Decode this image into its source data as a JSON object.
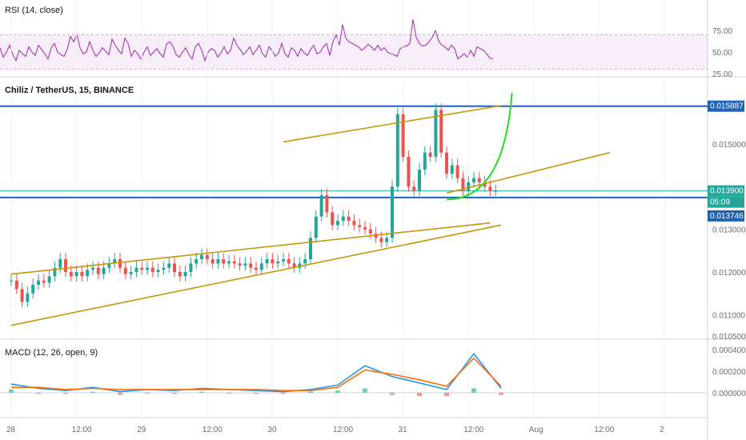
{
  "chart_data": [
    {
      "type": "line",
      "title": "RSI (14, close)",
      "ylim": [
        25,
        90
      ],
      "band": [
        30,
        70
      ],
      "y_ticks": [
        "75.00",
        "50.00",
        "25.00"
      ],
      "y_tick_values": [
        75,
        50,
        25
      ],
      "series": [
        {
          "color": "#9c27b0",
          "x": [
            0,
            4,
            8,
            12,
            16,
            20,
            24,
            28,
            32,
            36,
            40,
            44,
            48,
            52,
            56,
            60,
            64,
            68,
            72,
            76,
            80,
            84,
            88,
            92,
            96,
            100,
            104,
            108,
            112,
            116,
            120,
            124,
            128,
            132,
            136,
            140,
            144,
            148,
            152,
            156,
            160,
            164,
            168,
            172,
            176,
            180,
            184,
            188,
            192,
            196,
            200,
            204,
            208,
            212,
            216,
            220,
            224,
            228,
            232,
            236,
            240,
            244,
            248,
            252,
            256,
            260,
            264,
            268,
            272,
            276,
            280,
            284,
            288,
            292,
            296,
            300,
            304,
            308,
            312,
            316,
            320,
            324,
            328,
            332,
            336,
            340,
            344,
            348,
            352,
            356,
            360,
            364,
            368,
            372,
            376,
            380,
            384,
            388,
            392,
            396,
            400,
            404,
            408,
            412,
            416,
            420,
            424,
            428,
            432,
            436,
            440,
            444,
            448,
            452,
            456,
            460,
            464,
            468,
            472,
            476,
            480,
            484,
            488,
            492,
            496,
            500,
            504,
            508,
            512,
            516,
            520,
            524,
            528,
            532,
            536,
            540,
            544,
            548,
            552,
            556,
            560,
            564,
            568,
            572,
            576,
            580,
            584,
            588,
            592,
            596,
            600,
            604,
            608,
            612,
            616
          ],
          "y": [
            55,
            44,
            50,
            58,
            47,
            40,
            52,
            48,
            45,
            56,
            50,
            46,
            58,
            53,
            48,
            42,
            55,
            60,
            50,
            47,
            45,
            53,
            68,
            62,
            70,
            55,
            48,
            50,
            62,
            52,
            45,
            49,
            55,
            51,
            47,
            65,
            58,
            52,
            48,
            66,
            60,
            45,
            52,
            48,
            42,
            50,
            56,
            46,
            50,
            54,
            48,
            44,
            59,
            62,
            57,
            47,
            44,
            50,
            55,
            47,
            42,
            56,
            60,
            52,
            40,
            50,
            54,
            52,
            44,
            49,
            56,
            48,
            52,
            66,
            58,
            53,
            47,
            51,
            56,
            47,
            52,
            58,
            48,
            44,
            56,
            52,
            45,
            49,
            60,
            48,
            44,
            55,
            52,
            45,
            54,
            49,
            46,
            53,
            58,
            48,
            50,
            56,
            60,
            46,
            62,
            70,
            58,
            82,
            66,
            62,
            60,
            58,
            56,
            52,
            55,
            59,
            56,
            52,
            58,
            52,
            55,
            50,
            48,
            47,
            45,
            54,
            56,
            57,
            60,
            88,
            67,
            60,
            57,
            58,
            62,
            67,
            75,
            63,
            58,
            56,
            52,
            58,
            54,
            42,
            45,
            48,
            44,
            52,
            45,
            56,
            54,
            52,
            48,
            43,
            42
          ]
        }
      ]
    },
    {
      "type": "candlestick",
      "title": "Chiliz / TetherUS, 15, BINANCE",
      "ylim": [
        0.0105,
        0.0165
      ],
      "y_ticks": [
        "0.015000",
        "0.013000",
        "0.012000",
        "0.011000",
        "0.010500"
      ],
      "y_tick_values": [
        0.015,
        0.013,
        0.012,
        0.011,
        0.0105
      ],
      "x_ticks": [
        "28",
        "12:00",
        "29",
        "12:00",
        "30",
        "12:00",
        "31",
        "12:00",
        "Aug",
        "12:00",
        "2"
      ],
      "x_tick_positions_hours": [
        0,
        12,
        24,
        36,
        48,
        60,
        72,
        84,
        96,
        108,
        120
      ],
      "price_tags": [
        {
          "label": "0.015887",
          "value": 0.015887,
          "color": "#1e63b4"
        },
        {
          "label": "0.013900",
          "value": 0.0139,
          "color": "#26a69a"
        },
        {
          "label": "05:09",
          "value": 0.01375,
          "color": "#26a69a"
        },
        {
          "label": "0.013746",
          "value": 0.013746,
          "color": "#1e63b4"
        }
      ],
      "ohlc_sample_hours": [
        0,
        1,
        2,
        3,
        4,
        5,
        6,
        7,
        8,
        9,
        10,
        11,
        12,
        13,
        14,
        15,
        16,
        17,
        18,
        19,
        20,
        21,
        22,
        23,
        24,
        25,
        26,
        27,
        28,
        29,
        30,
        31,
        32,
        33,
        34,
        35,
        36,
        37,
        38,
        39,
        40,
        41,
        42,
        43,
        44,
        45,
        46,
        47,
        48,
        49,
        50,
        51,
        52,
        53,
        54,
        55,
        56,
        57,
        58,
        59,
        60,
        61,
        62,
        63,
        64,
        65,
        66,
        67,
        68,
        69,
        70,
        71,
        72,
        73,
        74,
        75,
        76,
        77,
        78,
        79,
        80,
        81,
        82,
        83,
        84,
        85,
        86,
        87,
        88,
        89,
        90
      ],
      "close": [
        0.0118,
        0.0116,
        0.0113,
        0.0115,
        0.0117,
        0.0118,
        0.01175,
        0.0119,
        0.0121,
        0.0123,
        0.012,
        0.0119,
        0.012,
        0.0119,
        0.01205,
        0.0121,
        0.01195,
        0.0121,
        0.0122,
        0.0123,
        0.0121,
        0.01195,
        0.012,
        0.0121,
        0.01205,
        0.0121,
        0.012,
        0.01205,
        0.0121,
        0.0122,
        0.012,
        0.0119,
        0.012,
        0.0122,
        0.0123,
        0.0124,
        0.0123,
        0.0122,
        0.0123,
        0.0122,
        0.01225,
        0.0122,
        0.01215,
        0.0122,
        0.0121,
        0.01205,
        0.0122,
        0.0123,
        0.0122,
        0.01225,
        0.0123,
        0.0122,
        0.0121,
        0.0122,
        0.0123,
        0.0128,
        0.0133,
        0.0138,
        0.0134,
        0.0131,
        0.0132,
        0.0133,
        0.0132,
        0.0131,
        0.01305,
        0.013,
        0.0129,
        0.0128,
        0.0127,
        0.0128,
        0.014,
        0.0157,
        0.0147,
        0.014,
        0.0139,
        0.0144,
        0.0148,
        0.0147,
        0.0158,
        0.0148,
        0.0143,
        0.0145,
        0.0142,
        0.0139,
        0.0141,
        0.0142,
        0.0141,
        0.014,
        0.0139,
        0.0139
      ],
      "trend_lines": [
        {
          "color": "#c8960a",
          "from": [
            0,
            0.01195
          ],
          "to": [
            88,
            0.01315
          ]
        },
        {
          "color": "#c8960a",
          "from": [
            0,
            0.01075
          ],
          "to": [
            90,
            0.0131
          ]
        },
        {
          "color": "#c8960a",
          "from": [
            50,
            0.01505
          ],
          "to": [
            90,
            0.0159
          ]
        },
        {
          "color": "#c8960a",
          "from": [
            80,
            0.01385
          ],
          "to": [
            110,
            0.0148
          ]
        }
      ],
      "horizontal_levels": [
        {
          "value": 0.015887,
          "color": "#1e63b4"
        },
        {
          "value": 0.013746,
          "color": "#1e63b4"
        },
        {
          "value": 0.0139,
          "color": "#26a69a"
        }
      ],
      "projection": {
        "color": "#22dd22",
        "from": [
          80,
          0.0137
        ],
        "to": [
          92,
          0.0162
        ]
      }
    },
    {
      "type": "line",
      "title": "MACD (12, 26, open, 9)",
      "ylim": [
        -0.0002,
        0.00045
      ],
      "y_ticks": [
        "0.000400",
        "0.000200",
        "0.000000"
      ],
      "y_tick_values": [
        0.0004,
        0.0002,
        0.0
      ],
      "series": [
        {
          "color": "#2196f3",
          "x": [
            0,
            5,
            10,
            15,
            20,
            25,
            30,
            35,
            40,
            45,
            50,
            55,
            60,
            65,
            70,
            75,
            80,
            85,
            90
          ],
          "y": [
            8e-05,
            4e-05,
            2e-05,
            5e-05,
            1e-05,
            3e-05,
            2e-05,
            4e-05,
            3e-05,
            2e-05,
            1e-05,
            3e-05,
            7e-05,
            0.00025,
            0.00015,
            9e-05,
            3e-05,
            0.00036,
            4e-05
          ]
        },
        {
          "color": "#ff6d00",
          "x": [
            0,
            5,
            10,
            15,
            20,
            25,
            30,
            35,
            40,
            45,
            50,
            55,
            60,
            65,
            70,
            75,
            80,
            85,
            90
          ],
          "y": [
            5e-05,
            5e-05,
            3e-05,
            4e-05,
            3e-05,
            3e-05,
            3e-05,
            3e-05,
            3e-05,
            3e-05,
            2e-05,
            2e-05,
            5e-05,
            0.00021,
            0.00017,
            0.00012,
            6e-05,
            0.00032,
            6e-05
          ]
        }
      ]
    }
  ]
}
